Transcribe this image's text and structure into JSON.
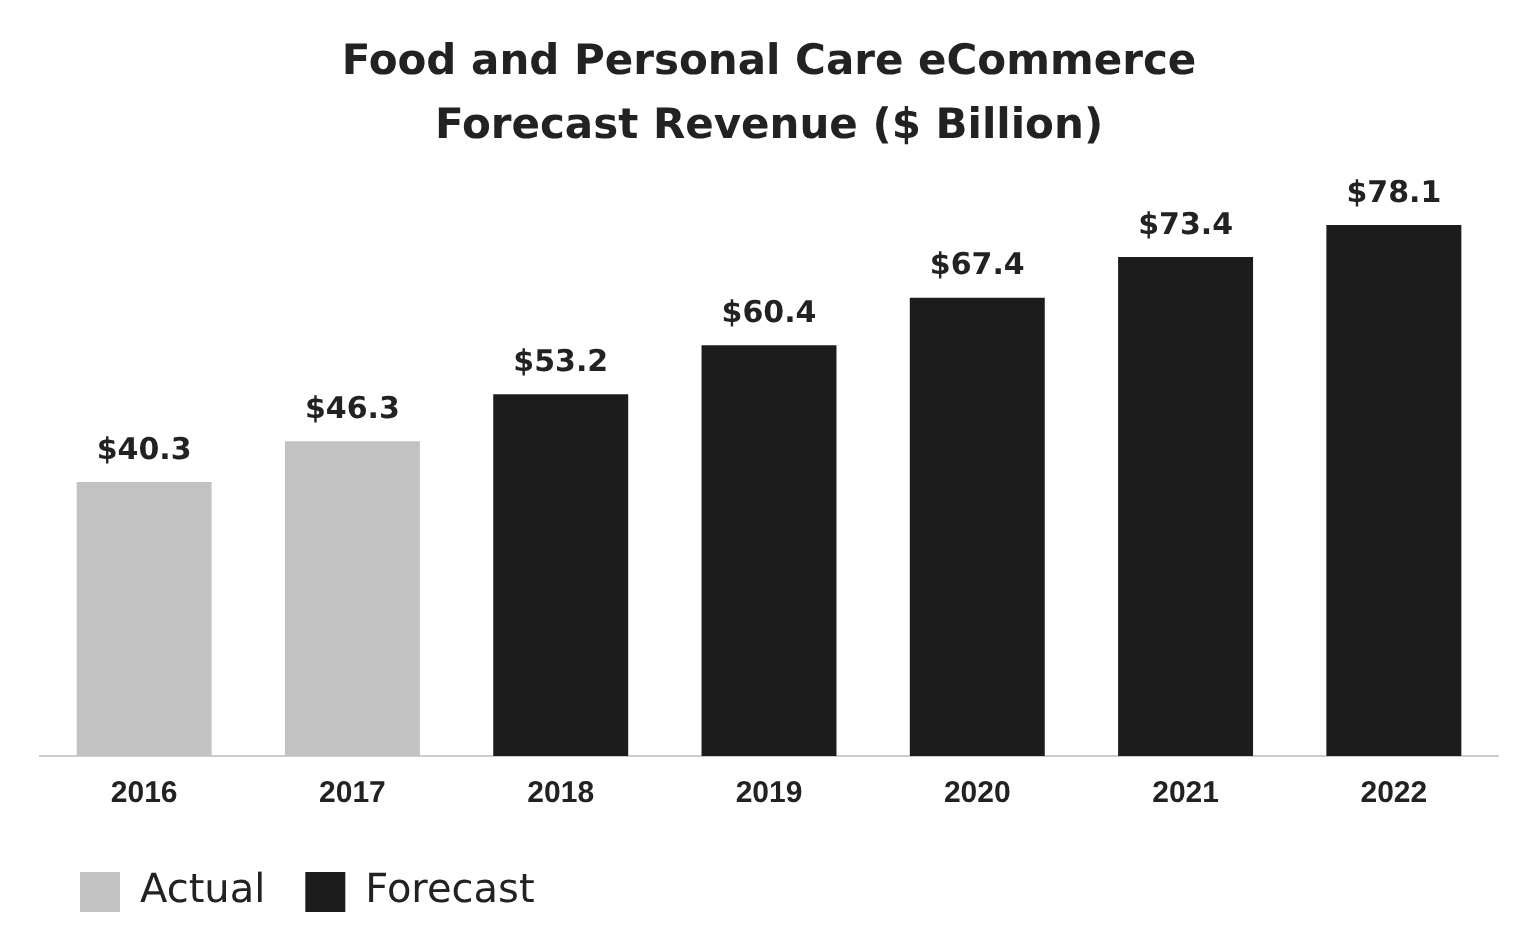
{
  "chart_data": {
    "type": "bar",
    "title": "Food and Personal Care eCommerce Forecast Revenue ($ Billion)",
    "categories": [
      "2016",
      "2017",
      "2018",
      "2019",
      "2020",
      "2021",
      "2022"
    ],
    "stacked": true,
    "series": [
      {
        "name": "Actual",
        "color": "#c2c2c2",
        "values": [
          40.3,
          46.3,
          null,
          null,
          null,
          null,
          null
        ],
        "value_labels": [
          "$40.3",
          "$46.3",
          null,
          null,
          null,
          null,
          null
        ]
      },
      {
        "name": "Forecast",
        "color": "#1c1c1c",
        "values": [
          null,
          null,
          53.2,
          60.4,
          67.4,
          73.4,
          78.1
        ],
        "value_labels": [
          null,
          null,
          "$53.2",
          "$60.4",
          "$67.4",
          "$73.4",
          "$78.1"
        ]
      }
    ],
    "grid": false,
    "legend": "bottom left"
  }
}
